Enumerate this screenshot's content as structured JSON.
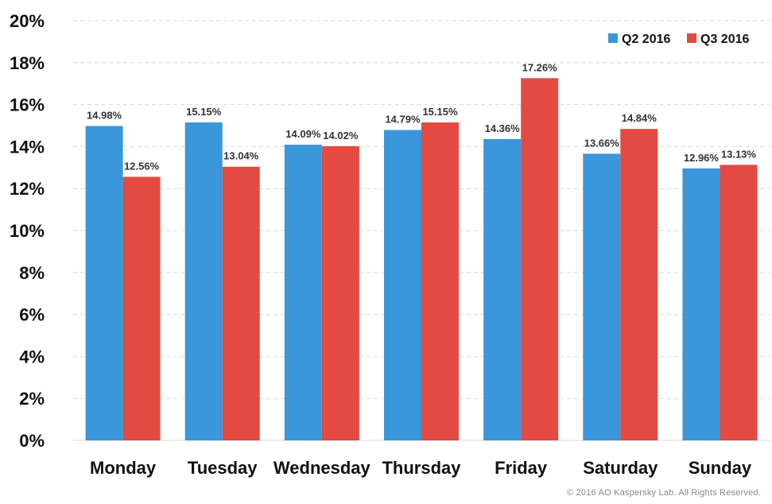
{
  "chart_data": {
    "type": "bar",
    "categories": [
      "Monday",
      "Tuesday",
      "Wednesday",
      "Thursday",
      "Friday",
      "Saturday",
      "Sunday"
    ],
    "series": [
      {
        "name": "Q2 2016",
        "color": "#3a97d9",
        "values": [
          14.98,
          15.15,
          14.09,
          14.79,
          14.36,
          13.66,
          12.96
        ],
        "labels": [
          "14.98%",
          "15.15%",
          "14.09%",
          "14.79%",
          "14.36%",
          "13.66%",
          "12.96%"
        ]
      },
      {
        "name": "Q3 2016",
        "color": "#e34a41",
        "values": [
          12.56,
          13.04,
          14.02,
          15.15,
          17.26,
          14.84,
          13.13
        ],
        "labels": [
          "12.56%",
          "13.04%",
          "14.02%",
          "15.15%",
          "17.26%",
          "14.84%",
          "13.13%"
        ]
      }
    ],
    "ylim": [
      0,
      20
    ],
    "yticks": [
      0,
      2,
      4,
      6,
      8,
      10,
      12,
      14,
      16,
      18,
      20
    ],
    "ytick_labels": [
      "0%",
      "2%",
      "4%",
      "6%",
      "8%",
      "10%",
      "12%",
      "14%",
      "16%",
      "18%",
      "20%"
    ],
    "grid": true,
    "legend_position": "top-right",
    "title": "",
    "xlabel": "",
    "ylabel": ""
  },
  "copyright": "© 2016 AO Kaspersky Lab. All Rights Reserved."
}
